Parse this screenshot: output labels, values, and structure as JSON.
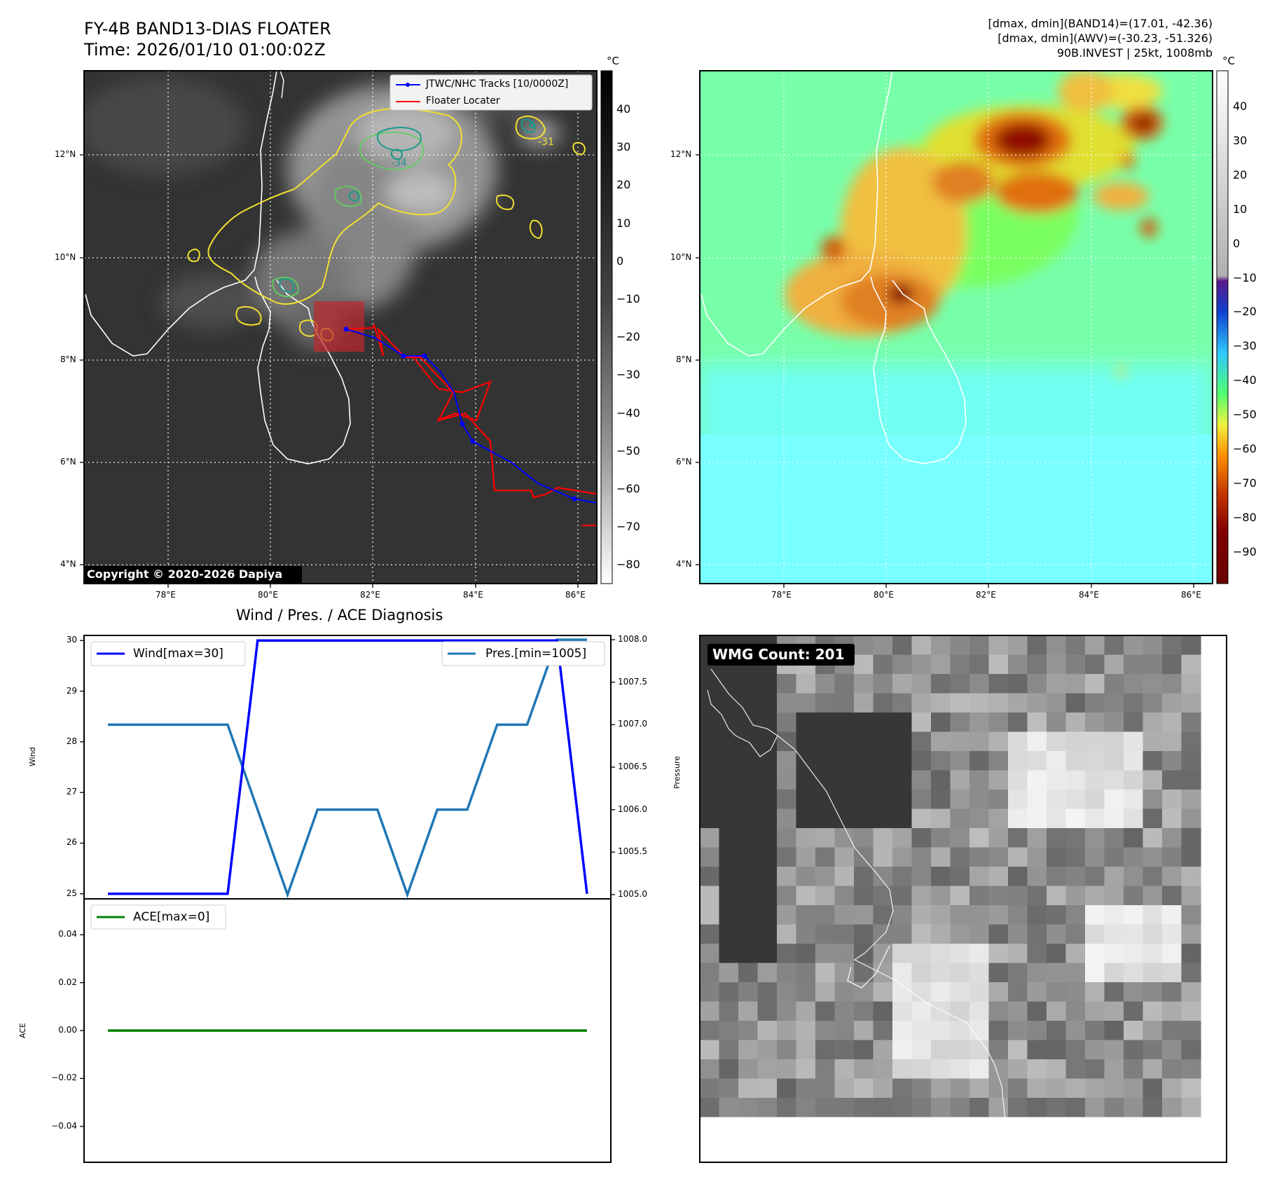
{
  "header": {
    "title": "FY-4B BAND13-DIAS FLOATER",
    "time": "Time: 2026/01/10 01:00:02Z",
    "info_band14": "[dmax, dmin](BAND14)=(17.01, -42.36)",
    "info_awv": "[dmax, dmin](AWV)=(-30.23, -51.326)",
    "info_storm": "90B.INVEST | 25kt, 1008mb"
  },
  "map": {
    "lon_ticks": [
      "78°E",
      "80°E",
      "82°E",
      "84°E",
      "86°E"
    ],
    "lat_ticks": [
      "12°N",
      "10°N",
      "8°N",
      "6°N",
      "4°N"
    ],
    "legend": {
      "tracks": "JTWC/NHC Tracks [10/0000Z]",
      "floater": "Floater Locater"
    },
    "copyright": "Copyright © 2020-2026 Dapiya",
    "contour_labels": [
      "-31",
      "-34"
    ],
    "colorbar_unit": "°C",
    "gray_colorbar_ticks": [
      "40",
      "30",
      "20",
      "10",
      "0",
      "−10",
      "−20",
      "−30",
      "−40",
      "−50",
      "−60",
      "−70",
      "−80"
    ],
    "color_colorbar_ticks": [
      "40",
      "30",
      "20",
      "10",
      "0",
      "−10",
      "−20",
      "−30",
      "−40",
      "−50",
      "−60",
      "−70",
      "−80",
      "−90"
    ],
    "colors": {
      "track": "#0000ff",
      "locater": "#ff0000",
      "floater_box": "#c0282d",
      "contour_yellow": "#f0e030",
      "contour_green": "#5fcf5f",
      "contour_teal": "#1a9a8a"
    }
  },
  "wmg": {
    "label": "WMG Count: 201"
  },
  "chart_data": [
    {
      "type": "line",
      "title": "Wind / Pres. / ACE Diagnosis",
      "x": [
        0,
        1,
        2,
        3,
        4,
        5,
        6,
        7,
        8,
        9,
        10,
        11,
        12,
        13,
        14,
        15,
        16
      ],
      "ylabel": "Wind",
      "ylim": [
        24.9,
        30.1
      ],
      "yticks": [
        "30",
        "29",
        "28",
        "27",
        "26",
        "25"
      ],
      "series": [
        {
          "name": "Wind[max=30]",
          "color": "#0000ff",
          "values": [
            25,
            25,
            25,
            25,
            25,
            30,
            30,
            30,
            30,
            30,
            30,
            30,
            30,
            30,
            30,
            30,
            25
          ]
        }
      ],
      "legend": "upper-left"
    },
    {
      "type": "line",
      "ylabel": "Pressure",
      "ylim": [
        1004.95,
        1008.05
      ],
      "yticks": [
        "1008.0",
        "1007.5",
        "1007.0",
        "1006.5",
        "1006.0",
        "1005.5",
        "1005.0"
      ],
      "x": [
        0,
        1,
        2,
        3,
        4,
        5,
        6,
        7,
        8,
        9,
        10,
        11,
        12,
        13,
        14,
        15,
        16
      ],
      "series": [
        {
          "name": "Pres.[min=1005]",
          "color": "#1f77b4",
          "values": [
            1007,
            1007,
            1007,
            1007,
            1007,
            1006,
            1005,
            1006,
            1006,
            1006,
            1005,
            1006,
            1006,
            1007,
            1007,
            1008,
            1008
          ]
        }
      ],
      "legend": "upper-right"
    },
    {
      "type": "line",
      "ylabel": "ACE",
      "ylim": [
        -0.055,
        0.055
      ],
      "yticks": [
        "0.04",
        "0.02",
        "0.00",
        "−0.02",
        "−0.04"
      ],
      "x": [
        0,
        1,
        2,
        3,
        4,
        5,
        6,
        7,
        8,
        9,
        10,
        11,
        12,
        13,
        14,
        15,
        16
      ],
      "series": [
        {
          "name": "ACE[max=0]",
          "color": "#008000",
          "values": [
            0,
            0,
            0,
            0,
            0,
            0,
            0,
            0,
            0,
            0,
            0,
            0,
            0,
            0,
            0,
            0,
            0
          ]
        }
      ],
      "legend": "upper-left"
    }
  ]
}
